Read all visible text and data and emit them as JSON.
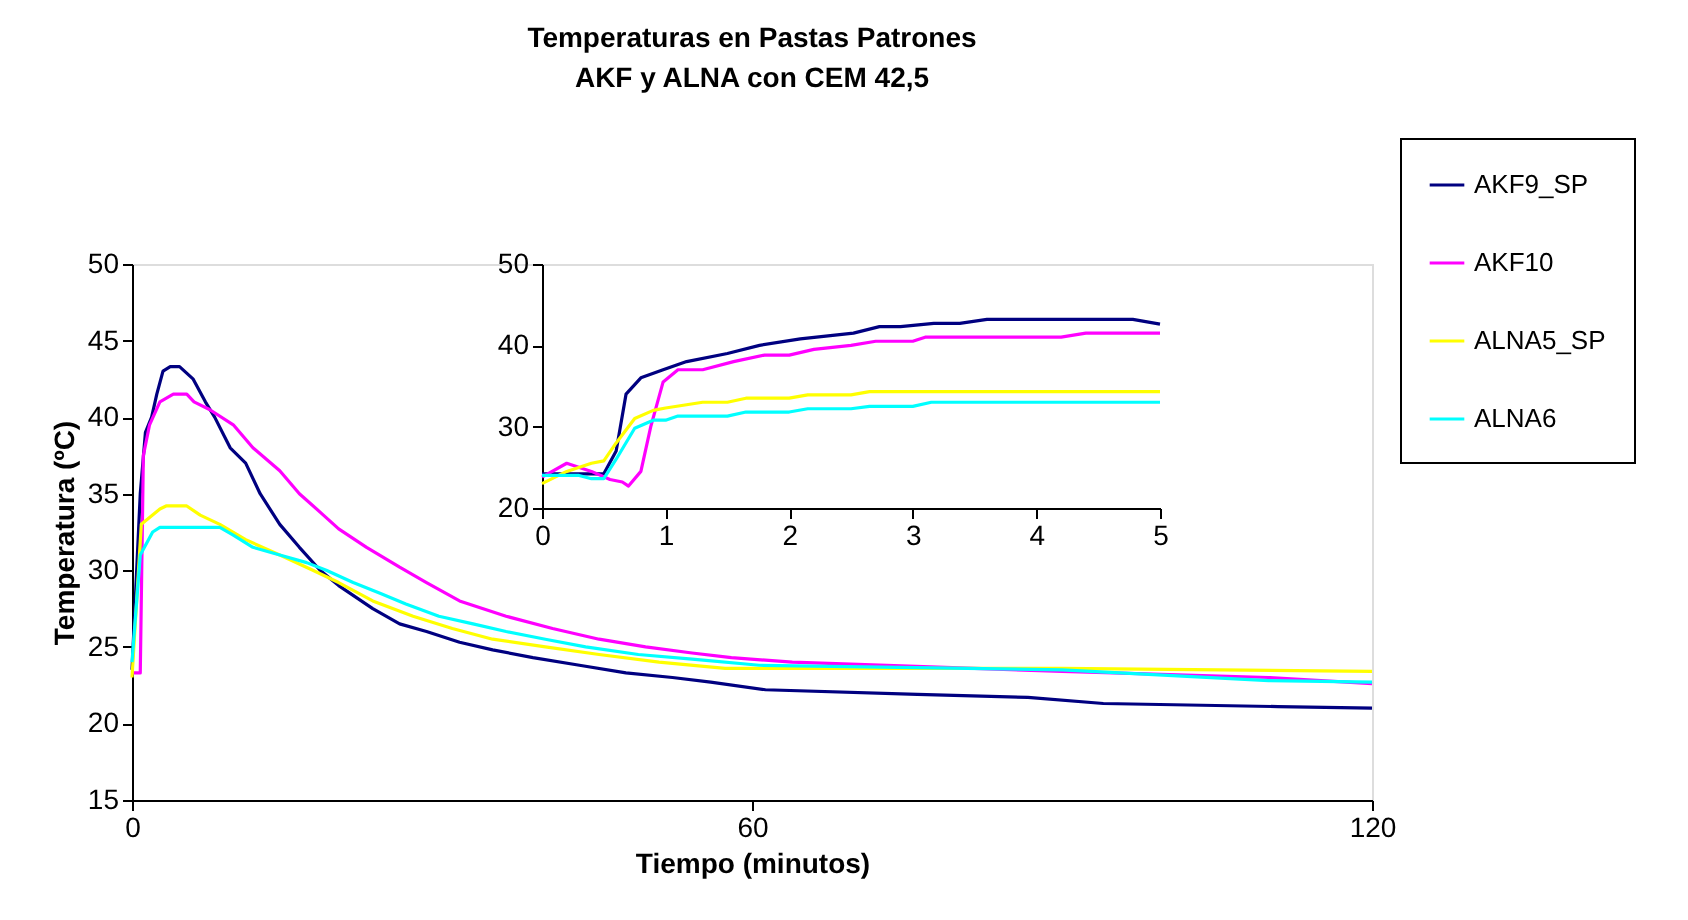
{
  "chart_data": [
    {
      "type": "line",
      "title": "Temperaturas en Pastas Patrones",
      "subtitle": "AKF y ALNA con CEM 42,5",
      "xlabel": "Tiempo (minutos)",
      "ylabel": "Temperatura (ºC)",
      "xlim": [
        0,
        120
      ],
      "xticks": [
        0,
        60,
        120
      ],
      "ylim": [
        15,
        50
      ],
      "yticks": [
        15,
        20,
        25,
        30,
        35,
        40,
        45,
        50
      ],
      "grid": false,
      "legend": "top right",
      "series": [
        {
          "name": "AKF9_SP",
          "color": "#000080",
          "x": [
            0,
            0.8,
            1.3,
            1.9,
            2.4,
            3.0,
            3.7,
            4.6,
            5.9,
            7.1,
            8.0,
            9.5,
            11,
            12.4,
            14.3,
            16.2,
            18.2,
            20,
            23.3,
            25.9,
            28.5,
            31.7,
            34.9,
            38.8,
            43.3,
            47.8,
            52.3,
            56,
            61.3,
            76,
            86.7,
            94,
            110.9,
            120
          ],
          "values": [
            23.5,
            35,
            39,
            40,
            41.5,
            43,
            43.3,
            43.3,
            42.5,
            41,
            40,
            38,
            37,
            35,
            33,
            31.5,
            30,
            29,
            27.5,
            26.5,
            26,
            25.3,
            24.8,
            24.3,
            23.8,
            23.3,
            23,
            22.7,
            22.2,
            21.9,
            21.7,
            21.3,
            21.1,
            21
          ]
        },
        {
          "name": "AKF10",
          "color": "#ff00ff",
          "x": [
            0,
            0.8,
            1.1,
            1.7,
            2.7,
            4,
            5.3,
            6,
            7.5,
            9.8,
            11.7,
            14.3,
            16.2,
            18.2,
            20,
            22.7,
            25.9,
            28.5,
            31.7,
            36.2,
            40.7,
            45.2,
            49.7,
            54.2,
            58,
            63.9,
            90,
            110,
            120
          ],
          "values": [
            23.3,
            23.3,
            37.5,
            39.5,
            41,
            41.5,
            41.5,
            41,
            40.5,
            39.5,
            38,
            36.5,
            35,
            33.8,
            32.7,
            31.5,
            30.2,
            29.2,
            28,
            27,
            26.2,
            25.5,
            25,
            24.6,
            24.3,
            24,
            23.4,
            23,
            22.6
          ]
        },
        {
          "name": "ALNA5_SP",
          "color": "#ffff00",
          "x": [
            0,
            0.9,
            2.7,
            3.3,
            5.3,
            6.6,
            8.5,
            11,
            14.3,
            17.5,
            20,
            23.3,
            27.2,
            31,
            34.9,
            40,
            45.2,
            51,
            57.4,
            90,
            120
          ],
          "values": [
            23,
            33,
            34,
            34.2,
            34.2,
            33.6,
            33,
            32,
            31,
            30,
            29.2,
            28,
            27,
            26.2,
            25.5,
            25,
            24.5,
            24,
            23.6,
            23.6,
            23.4
          ]
        },
        {
          "name": "ALNA6",
          "color": "#00ffff",
          "x": [
            0,
            0.8,
            2,
            2.7,
            8.5,
            9.8,
            11.7,
            14.3,
            16.9,
            18.8,
            21.4,
            24,
            26.5,
            29.7,
            33,
            36.2,
            40,
            43.9,
            49,
            54.2,
            60.7,
            90,
            110,
            120
          ],
          "values": [
            24,
            31,
            32.5,
            32.8,
            32.8,
            32.3,
            31.5,
            31,
            30.5,
            30,
            29.2,
            28.5,
            27.8,
            27,
            26.5,
            26,
            25.5,
            25,
            24.5,
            24.2,
            23.8,
            23.5,
            22.8,
            22.7
          ]
        }
      ]
    },
    {
      "type": "line",
      "xlim": [
        0,
        5
      ],
      "xticks": [
        0,
        1,
        2,
        3,
        4,
        5
      ],
      "ylim": [
        20,
        50
      ],
      "yticks": [
        20,
        30,
        40,
        50
      ],
      "grid": false,
      "series": [
        {
          "color": "#000080",
          "x": [
            0,
            0.5,
            0.6,
            0.68,
            0.8,
            0.98,
            1.17,
            1.5,
            1.76,
            2.09,
            2.52,
            2.73,
            2.9,
            3.17,
            3.38,
            3.6,
            4.78,
            5
          ],
          "values": [
            24.2,
            24.2,
            27,
            34,
            36,
            37,
            38,
            39,
            40,
            40.8,
            41.5,
            42.3,
            42.3,
            42.7,
            42.7,
            43.2,
            43.2,
            42.6
          ]
        },
        {
          "color": "#ff00ff",
          "x": [
            0,
            0.2,
            0.4,
            0.55,
            0.65,
            0.7,
            0.8,
            0.88,
            0.98,
            1.1,
            1.3,
            1.55,
            1.8,
            2.0,
            2.2,
            2.5,
            2.7,
            3.0,
            3.1,
            4.2,
            4.4,
            5
          ],
          "values": [
            23.8,
            25.5,
            24.5,
            23.5,
            23.2,
            22.7,
            24.5,
            30,
            35.5,
            37,
            37,
            38,
            38.8,
            38.8,
            39.5,
            40,
            40.5,
            40.5,
            41,
            41,
            41.5,
            41.5
          ]
        },
        {
          "color": "#ffff00",
          "x": [
            0,
            0.2,
            0.4,
            0.5,
            0.6,
            0.75,
            0.9,
            1.0,
            1.3,
            1.5,
            1.65,
            2,
            2.15,
            2.5,
            2.65,
            5
          ],
          "values": [
            23,
            24.5,
            25.5,
            25.8,
            28,
            31,
            32,
            32.3,
            33,
            33,
            33.5,
            33.5,
            33.9,
            33.9,
            34.3,
            34.3
          ]
        },
        {
          "color": "#00ffff",
          "x": [
            0,
            0.3,
            0.4,
            0.5,
            0.6,
            0.75,
            0.9,
            1.0,
            1.1,
            1.5,
            1.65,
            2.0,
            2.15,
            2.5,
            2.65,
            3.0,
            3.15,
            5
          ],
          "values": [
            24,
            24,
            23.6,
            23.6,
            26,
            29.8,
            30.8,
            30.8,
            31.3,
            31.3,
            31.8,
            31.8,
            32.2,
            32.2,
            32.5,
            32.5,
            33,
            33
          ]
        }
      ]
    }
  ]
}
